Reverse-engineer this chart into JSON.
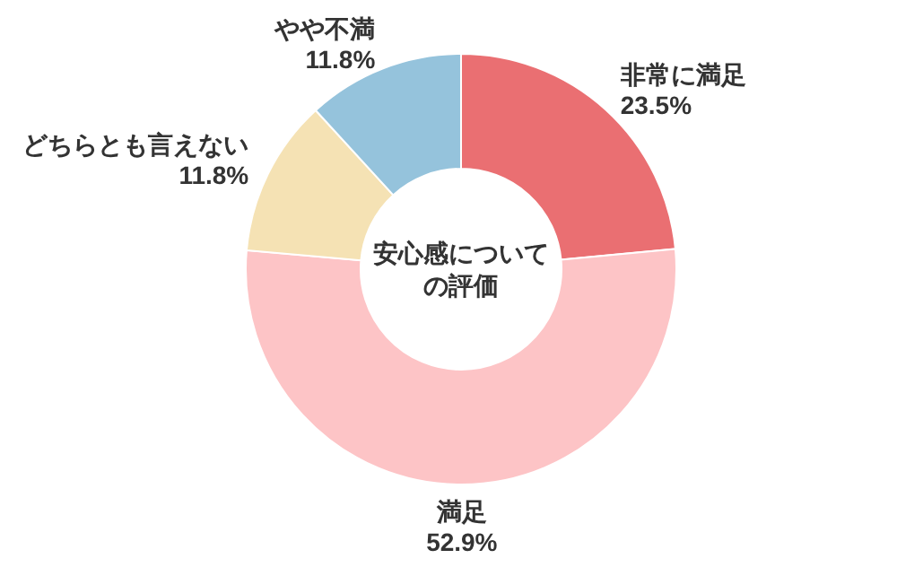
{
  "chart_data": {
    "type": "donut",
    "title": "安心感についての評価",
    "categories": [
      "非常に満足",
      "満足",
      "どちらとも言えない",
      "やや不満"
    ],
    "values": [
      23.5,
      52.9,
      11.8,
      11.8
    ],
    "colors": [
      "#ea6f72",
      "#fdc4c6",
      "#f5e2b4",
      "#95c3dc"
    ],
    "value_labels": [
      "23.5%",
      "52.9%",
      "11.8%",
      "11.8%"
    ]
  }
}
